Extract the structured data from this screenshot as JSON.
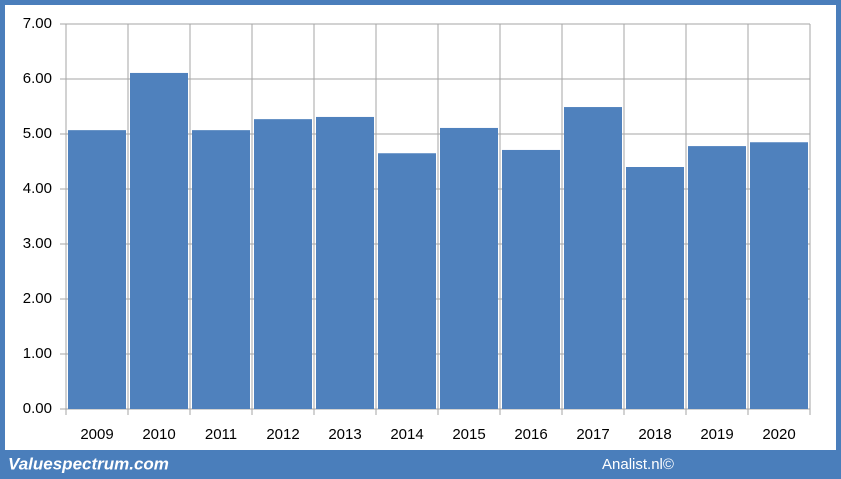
{
  "chart_data": {
    "type": "bar",
    "categories": [
      "2009",
      "2010",
      "2011",
      "2012",
      "2013",
      "2014",
      "2015",
      "2016",
      "2017",
      "2018",
      "2019",
      "2020"
    ],
    "values": [
      5.07,
      6.11,
      5.07,
      5.27,
      5.31,
      4.65,
      5.11,
      4.71,
      5.49,
      4.4,
      4.78,
      4.85
    ],
    "color": "#4f81bd",
    "ylim": [
      0,
      7
    ],
    "yticks": [
      {
        "value": 0,
        "label": "0.00"
      },
      {
        "value": 1,
        "label": "1.00"
      },
      {
        "value": 2,
        "label": "2.00"
      },
      {
        "value": 3,
        "label": "3.00"
      },
      {
        "value": 4,
        "label": "4.00"
      },
      {
        "value": 5,
        "label": "5.00"
      },
      {
        "value": 6,
        "label": "6.00"
      },
      {
        "value": 7,
        "label": "7.00"
      }
    ],
    "grid": true
  },
  "footer": {
    "left": "Valuespectrum.com",
    "right": "Analist.nl©"
  }
}
